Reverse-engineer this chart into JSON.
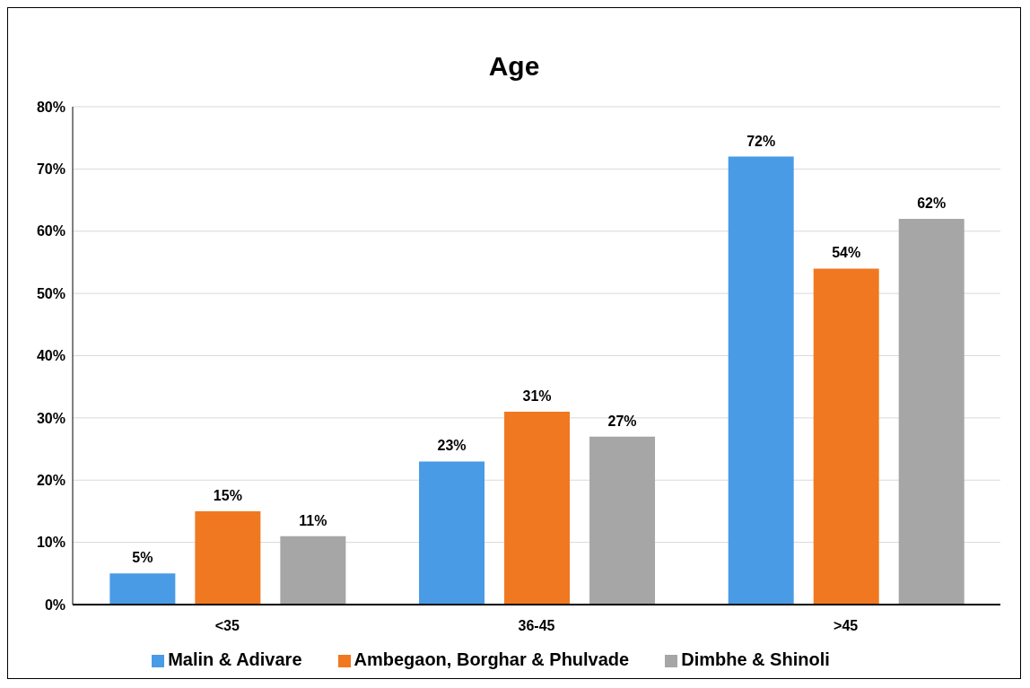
{
  "chart_data": {
    "type": "bar",
    "title": "Age",
    "categories": [
      "<35",
      "36-45",
      ">45"
    ],
    "series": [
      {
        "name": "Malin & Adivare",
        "color": "#4a9be6",
        "values": [
          5,
          23,
          72
        ],
        "value_labels": [
          "5%",
          "23%",
          "72%"
        ]
      },
      {
        "name": "Ambegaon, Borghar & Phulvade",
        "color": "#f07820",
        "values": [
          15,
          31,
          54
        ],
        "value_labels": [
          "15%",
          "31%",
          "54%"
        ]
      },
      {
        "name": "Dimbhe & Shinoli",
        "color": "#a6a6a6",
        "values": [
          11,
          27,
          62
        ],
        "value_labels": [
          "11%",
          "27%",
          "62%"
        ]
      }
    ],
    "ylim": [
      0,
      80
    ],
    "yticks": [
      {
        "value": 0,
        "label": "0%"
      },
      {
        "value": 10,
        "label": "10%"
      },
      {
        "value": 20,
        "label": "20%"
      },
      {
        "value": 30,
        "label": "30%"
      },
      {
        "value": 40,
        "label": "40%"
      },
      {
        "value": 50,
        "label": "50%"
      },
      {
        "value": 60,
        "label": "60%"
      },
      {
        "value": 70,
        "label": "70%"
      },
      {
        "value": 80,
        "label": "80%"
      }
    ],
    "grid": "y",
    "legend": "bottom"
  }
}
